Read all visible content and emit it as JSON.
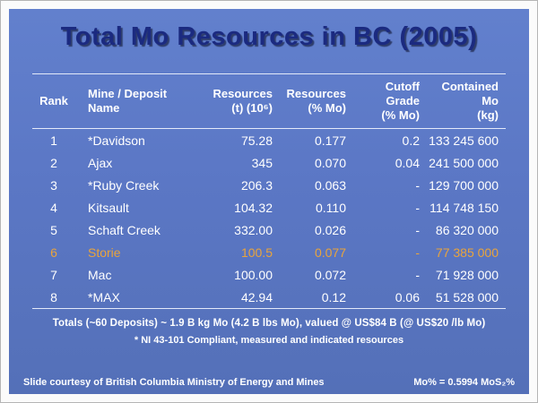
{
  "slide": {
    "title": "Total Mo Resources in BC (2005)",
    "totals_line": "Totals (~60 Deposits) ~ 1.9 B kg Mo (4.2 B lbs Mo), valued @ US$84 B (@ US$20 /lb Mo)",
    "note_line": "* NI 43-101 Compliant, measured and indicated resources",
    "credit": "Slide courtesy of British Columbia Ministry of Energy and Mines",
    "formula": "Mo% = 0.5994 MoS₂%"
  },
  "colors": {
    "background": "#5b77c5",
    "background_top": "#6280cd",
    "background_bottom": "#5470b8",
    "title": "#1b2a80",
    "text": "#ffffff",
    "highlight": "#e9a43c",
    "rule": "#e4eafa"
  },
  "table": {
    "columns": [
      "rank",
      "name",
      "resources_t",
      "resources_pct",
      "cutoff",
      "contained"
    ],
    "headers": {
      "rank": "Rank",
      "name": "Mine / Deposit\nName",
      "resources_t": "Resources\n(t) (10⁶)",
      "resources_pct": "Resources\n(% Mo)",
      "cutoff": "Cutoff\nGrade\n(% Mo)",
      "contained": "Contained\nMo\n(kg)"
    },
    "rows": [
      {
        "rank": "1",
        "name": "*Davidson",
        "resources_t": "75.28",
        "resources_pct": "0.177",
        "cutoff": "0.2",
        "contained": "133 245 600",
        "highlight": false
      },
      {
        "rank": "2",
        "name": "Ajax",
        "resources_t": "345",
        "resources_pct": "0.070",
        "cutoff": "0.04",
        "contained": "241 500 000",
        "highlight": false
      },
      {
        "rank": "3",
        "name": "*Ruby Creek",
        "resources_t": "206.3",
        "resources_pct": "0.063",
        "cutoff": "-",
        "contained": "129 700 000",
        "highlight": false
      },
      {
        "rank": "4",
        "name": "Kitsault",
        "resources_t": "104.32",
        "resources_pct": "0.110",
        "cutoff": "-",
        "contained": "114 748 150",
        "highlight": false
      },
      {
        "rank": "5",
        "name": "Schaft Creek",
        "resources_t": "332.00",
        "resources_pct": "0.026",
        "cutoff": "-",
        "contained": "86 320 000",
        "highlight": false
      },
      {
        "rank": "6",
        "name": "Storie",
        "resources_t": "100.5",
        "resources_pct": "0.077",
        "cutoff": "-",
        "contained": "77 385 000",
        "highlight": true
      },
      {
        "rank": "7",
        "name": "Mac",
        "resources_t": "100.00",
        "resources_pct": "0.072",
        "cutoff": "-",
        "contained": "71 928 000",
        "highlight": false
      },
      {
        "rank": "8",
        "name": "*MAX",
        "resources_t": "42.94",
        "resources_pct": "0.12",
        "cutoff": "0.06",
        "contained": "51 528 000",
        "highlight": false
      }
    ]
  }
}
